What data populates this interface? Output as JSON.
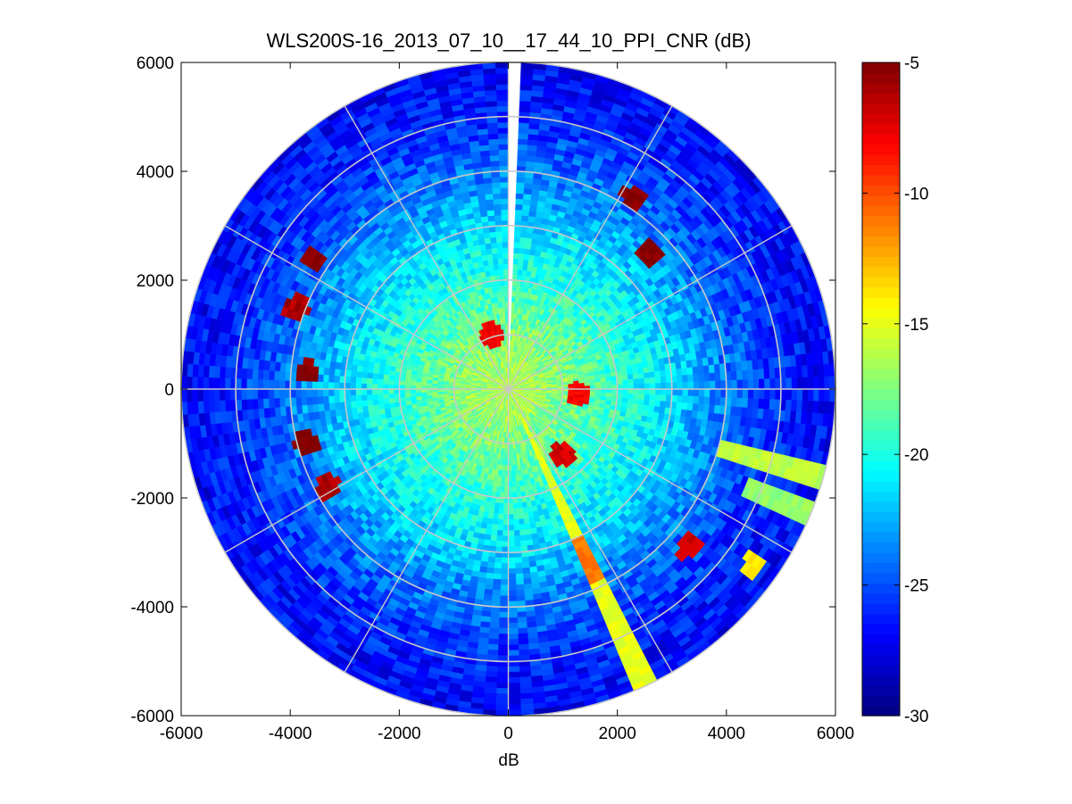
{
  "figure": {
    "title": "WLS200S-16_2013_07_10__17_44_10_PPI_CNR (dB)",
    "background": "#ffffff"
  },
  "chart_data": {
    "type": "heatmap",
    "projection": "polar-ppi",
    "title": "WLS200S-16_2013_07_10__17_44_10_PPI_CNR (dB)",
    "xlabel": "dB",
    "ylabel": "",
    "xlim": [
      -6000,
      6000
    ],
    "ylim": [
      -6000,
      6000
    ],
    "xticks": [
      -6000,
      -4000,
      -2000,
      0,
      2000,
      4000,
      6000
    ],
    "yticks": [
      -6000,
      -4000,
      -2000,
      0,
      2000,
      4000,
      6000
    ],
    "xtick_labels": [
      "-6000",
      "-4000",
      "-2000",
      "0",
      "2000",
      "4000",
      "6000"
    ],
    "ytick_labels": [
      "-6000",
      "-4000",
      "-2000",
      "0",
      "2000",
      "4000",
      "6000"
    ],
    "max_range": 6000,
    "range_rings": [
      1000,
      2000,
      3000,
      4000,
      5000,
      6000
    ],
    "radial_lines_deg": [
      0,
      30,
      60,
      90,
      120,
      150,
      180,
      210,
      240,
      270,
      300,
      330
    ],
    "grid": true,
    "colormap": "jet",
    "colorbar": {
      "min": -30,
      "max": -5,
      "ticks": [
        -5,
        -10,
        -15,
        -20,
        -25,
        -30
      ],
      "tick_labels": [
        "-5",
        "-10",
        "-15",
        "-20",
        "-25",
        "-30"
      ],
      "placement": "right"
    },
    "cnr_profile": {
      "range_m": [
        0,
        1000,
        2000,
        3000,
        4000,
        5000,
        6000
      ],
      "cnr_db": [
        -16,
        -17.5,
        -19.5,
        -21.5,
        -24,
        -26,
        -27
      ]
    },
    "sectors": [
      {
        "label": "blocked sector (no data)",
        "az_from": -1,
        "az_to": 2,
        "range_from": 0,
        "range_to": 6000,
        "value": null
      },
      {
        "label": "hard target band",
        "az_from": 103,
        "az_to": 109,
        "range_from": 4000,
        "range_to": 6000,
        "value": -16
      },
      {
        "label": "hard target band",
        "az_from": 111,
        "az_to": 114,
        "range_from": 4700,
        "range_to": 6000,
        "value": -17
      },
      {
        "label": "hard target band",
        "az_from": 152,
        "az_to": 157,
        "range_from": 500,
        "range_to": 6000,
        "value": -15
      },
      {
        "label": "strong returns",
        "az_from": 153,
        "az_to": 158,
        "range_from": 3000,
        "range_to": 3900,
        "value": -11
      }
    ],
    "targets": [
      {
        "x": -3600,
        "y": 2400,
        "value": -5
      },
      {
        "x": -3900,
        "y": 1500,
        "value": -6
      },
      {
        "x": -3700,
        "y": 300,
        "value": -5
      },
      {
        "x": -3700,
        "y": -1000,
        "value": -5
      },
      {
        "x": -3300,
        "y": -1800,
        "value": -6
      },
      {
        "x": 2300,
        "y": 3500,
        "value": -5
      },
      {
        "x": 2600,
        "y": 2500,
        "value": -5
      },
      {
        "x": 3300,
        "y": -2900,
        "value": -7
      },
      {
        "x": 4500,
        "y": -3200,
        "value": -14
      },
      {
        "x": -300,
        "y": 1000,
        "value": -8
      },
      {
        "x": 1000,
        "y": -1200,
        "value": -7
      },
      {
        "x": 1300,
        "y": -100,
        "value": -8
      }
    ]
  }
}
